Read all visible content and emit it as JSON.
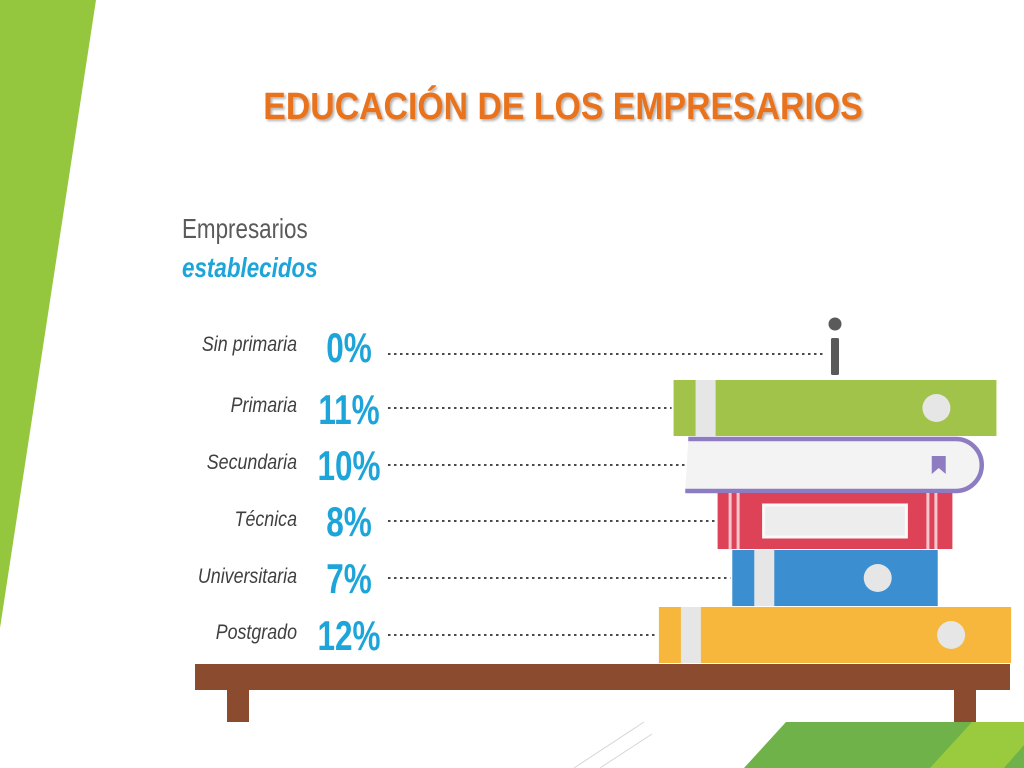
{
  "slide": {
    "colors": {
      "accent_green": "#94C73E",
      "footer_green": "#6FB24A",
      "footer_light_green": "#9ACA3D",
      "shelf_brown": "#8A4B2E"
    }
  },
  "chart_data": {
    "type": "bar",
    "orientation": "horizontal",
    "title": "EDUCACIÓN DE LOS EMPRESARIOS",
    "subtitle": [
      "Empresarios",
      "establecidos"
    ],
    "categories": [
      "Sin primaria",
      "Primaria",
      "Secundaria",
      "Técnica",
      "Universitaria",
      "Postgrado"
    ],
    "values": [
      0,
      11,
      10,
      8,
      7,
      12
    ],
    "value_labels": [
      "0%",
      "11%",
      "10%",
      "8%",
      "7%",
      "12%"
    ],
    "grid": false,
    "icons": {
      "zero_value_marker": "inverted-exclamation-icon"
    },
    "colors": {
      "title": "#E8731F",
      "subtitle_line_1": "#5A5A5A",
      "subtitle_line_2": "#1DA5D9",
      "category_labels": "#3F3F3F",
      "value_labels": "#1DA5D9",
      "bars": [
        "#5A5A5A",
        "#A2C34A",
        "#8E7CC3",
        "#DE4256",
        "#3B8FD0",
        "#F6B73C"
      ]
    }
  }
}
